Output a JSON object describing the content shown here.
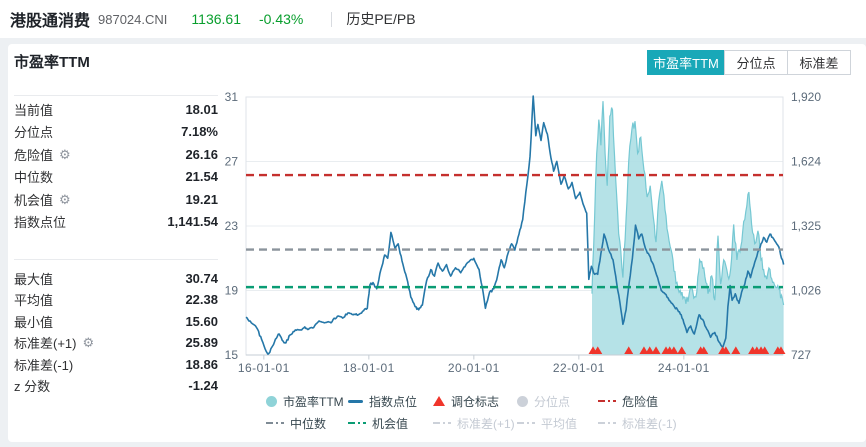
{
  "header": {
    "index_name": "港股通消费",
    "index_code": "987024.CNI",
    "price": "1136.61",
    "change": "-0.43%",
    "menu_label": "历史PE/PB",
    "change_color": "#089e2d"
  },
  "panel": {
    "title": "市盈率TTM",
    "stats_group1": [
      {
        "label": "当前值",
        "value": "18.01",
        "gear": false
      },
      {
        "label": "分位点",
        "value": "7.18%",
        "gear": false
      },
      {
        "label": "危险值",
        "value": "26.16",
        "gear": true
      },
      {
        "label": "中位数",
        "value": "21.54",
        "gear": false
      },
      {
        "label": "机会值",
        "value": "19.21",
        "gear": true
      },
      {
        "label": "指数点位",
        "value": "1,141.54",
        "gear": false
      }
    ],
    "stats_group2": [
      {
        "label": "最大值",
        "value": "30.74",
        "gear": false
      },
      {
        "label": "平均值",
        "value": "22.38",
        "gear": false
      },
      {
        "label": "最小值",
        "value": "15.60",
        "gear": false
      },
      {
        "label": "标准差(+1)",
        "value": "25.89",
        "gear": true
      },
      {
        "label": "标准差(-1)",
        "value": "18.86",
        "gear": false
      },
      {
        "label": "z 分数",
        "value": "-1.24",
        "gear": false
      }
    ]
  },
  "tabs": [
    {
      "label": "市盈率TTM",
      "active": true
    },
    {
      "label": "分位点",
      "active": false
    },
    {
      "label": "标准差",
      "active": false
    }
  ],
  "chart_data": {
    "type": "area+line+scatter",
    "title": "",
    "x_range_years": [
      2015.66,
      2025.92
    ],
    "x_ticks": [
      "16-01-01",
      "18-01-01",
      "20-01-01",
      "22-01-01",
      "24-01-01"
    ],
    "x_tick_years": [
      2016,
      2018,
      2020,
      2022,
      2024
    ],
    "left_axis": {
      "label": "市盈率TTM",
      "range": [
        15,
        31
      ],
      "ticks": [
        15,
        19,
        23,
        27,
        31
      ]
    },
    "right_axis": {
      "label": "指数点位",
      "range": [
        727,
        1920
      ],
      "ticks": [
        "727",
        "1,026",
        "1,325",
        "1,624",
        "1,920"
      ]
    },
    "reference_lines": [
      {
        "name": "危险值",
        "value": 26.16,
        "color": "#c5302e"
      },
      {
        "name": "中位数",
        "value": 21.54,
        "color": "#8b949c"
      },
      {
        "name": "机会值",
        "value": 19.21,
        "color": "#0a9c74"
      }
    ],
    "series": [
      {
        "name": "市盈率TTM",
        "type": "area",
        "axis": "left",
        "fill": "#abdee4",
        "stroke": "#76c8d3",
        "points": [
          [
            2022.25,
            18.8
          ],
          [
            2022.3,
            23.5
          ],
          [
            2022.34,
            27.5
          ],
          [
            2022.38,
            29.6
          ],
          [
            2022.42,
            28.0
          ],
          [
            2022.46,
            30.74
          ],
          [
            2022.5,
            27.5
          ],
          [
            2022.54,
            25.5
          ],
          [
            2022.59,
            29.8
          ],
          [
            2022.64,
            30.2
          ],
          [
            2022.7,
            26.0
          ],
          [
            2022.76,
            22.5
          ],
          [
            2022.84,
            19.8
          ],
          [
            2022.9,
            23.5
          ],
          [
            2022.95,
            27.0
          ],
          [
            2023.01,
            29.0
          ],
          [
            2023.07,
            29.5
          ],
          [
            2023.12,
            27.5
          ],
          [
            2023.18,
            28.5
          ],
          [
            2023.24,
            26.5
          ],
          [
            2023.3,
            24.8
          ],
          [
            2023.36,
            25.5
          ],
          [
            2023.42,
            23.5
          ],
          [
            2023.47,
            22.0
          ],
          [
            2023.52,
            24.5
          ],
          [
            2023.58,
            25.8
          ],
          [
            2023.64,
            24.0
          ],
          [
            2023.7,
            22.5
          ],
          [
            2023.76,
            21.5
          ],
          [
            2023.81,
            20.2
          ],
          [
            2023.87,
            19.5
          ],
          [
            2023.93,
            19.0
          ],
          [
            2024.0,
            18.6
          ],
          [
            2024.08,
            18.3
          ],
          [
            2024.15,
            19.2
          ],
          [
            2024.23,
            18.6
          ],
          [
            2024.3,
            20.9
          ],
          [
            2024.38,
            20.4
          ],
          [
            2024.46,
            18.8
          ],
          [
            2024.53,
            19.9
          ],
          [
            2024.59,
            18.4
          ],
          [
            2024.65,
            22.4
          ],
          [
            2024.7,
            19.4
          ],
          [
            2024.76,
            20.9
          ],
          [
            2024.84,
            19.9
          ],
          [
            2024.89,
            20.3
          ],
          [
            2024.95,
            23.1
          ],
          [
            2025.01,
            20.9
          ],
          [
            2025.07,
            21.4
          ],
          [
            2025.12,
            22.6
          ],
          [
            2025.18,
            23.9
          ],
          [
            2025.24,
            25.1
          ],
          [
            2025.29,
            23.1
          ],
          [
            2025.35,
            21.9
          ],
          [
            2025.41,
            22.7
          ],
          [
            2025.47,
            20.9
          ],
          [
            2025.52,
            20.3
          ],
          [
            2025.58,
            19.7
          ],
          [
            2025.64,
            20.3
          ],
          [
            2025.69,
            19.5
          ],
          [
            2025.75,
            19.2
          ],
          [
            2025.81,
            19.1
          ],
          [
            2025.86,
            18.7
          ],
          [
            2025.9,
            18.1
          ]
        ]
      },
      {
        "name": "指数点位",
        "type": "line",
        "axis": "right",
        "stroke": "#2577a8",
        "points": [
          [
            2015.66,
            902
          ],
          [
            2015.78,
            872
          ],
          [
            2015.88,
            846
          ],
          [
            2016.0,
            772
          ],
          [
            2016.08,
            731
          ],
          [
            2016.15,
            762
          ],
          [
            2016.22,
            800
          ],
          [
            2016.29,
            824
          ],
          [
            2016.35,
            795
          ],
          [
            2016.42,
            783
          ],
          [
            2016.5,
            820
          ],
          [
            2016.6,
            843
          ],
          [
            2016.7,
            843
          ],
          [
            2016.78,
            857
          ],
          [
            2016.85,
            846
          ],
          [
            2016.95,
            854
          ],
          [
            2017.05,
            884
          ],
          [
            2017.15,
            876
          ],
          [
            2017.28,
            876
          ],
          [
            2017.4,
            906
          ],
          [
            2017.5,
            898
          ],
          [
            2017.6,
            921
          ],
          [
            2017.7,
            913
          ],
          [
            2017.8,
            913
          ],
          [
            2017.9,
            932
          ],
          [
            2017.97,
            943
          ],
          [
            2018.02,
            1051
          ],
          [
            2018.08,
            1062
          ],
          [
            2018.15,
            1033
          ],
          [
            2018.23,
            1122
          ],
          [
            2018.3,
            1189
          ],
          [
            2018.36,
            1174
          ],
          [
            2018.42,
            1294
          ],
          [
            2018.5,
            1219
          ],
          [
            2018.56,
            1241
          ],
          [
            2018.65,
            1145
          ],
          [
            2018.72,
            1085
          ],
          [
            2018.8,
            995
          ],
          [
            2018.88,
            951
          ],
          [
            2018.95,
            936
          ],
          [
            2019.02,
            958
          ],
          [
            2019.1,
            1070
          ],
          [
            2019.18,
            1122
          ],
          [
            2019.25,
            1092
          ],
          [
            2019.32,
            1152
          ],
          [
            2019.4,
            1115
          ],
          [
            2019.48,
            1145
          ],
          [
            2019.56,
            1092
          ],
          [
            2019.65,
            1130
          ],
          [
            2019.75,
            1107
          ],
          [
            2019.85,
            1145
          ],
          [
            2019.94,
            1167
          ],
          [
            2020.0,
            1174
          ],
          [
            2020.1,
            1122
          ],
          [
            2020.16,
            1040
          ],
          [
            2020.22,
            943
          ],
          [
            2020.3,
            1018
          ],
          [
            2020.38,
            1033
          ],
          [
            2020.45,
            1092
          ],
          [
            2020.52,
            1167
          ],
          [
            2020.58,
            1130
          ],
          [
            2020.65,
            1197
          ],
          [
            2020.72,
            1241
          ],
          [
            2020.78,
            1212
          ],
          [
            2020.86,
            1286
          ],
          [
            2020.93,
            1353
          ],
          [
            2021.01,
            1517
          ],
          [
            2021.07,
            1644
          ],
          [
            2021.13,
            1924
          ],
          [
            2021.18,
            1741
          ],
          [
            2021.22,
            1793
          ],
          [
            2021.28,
            1719
          ],
          [
            2021.33,
            1801
          ],
          [
            2021.4,
            1748
          ],
          [
            2021.47,
            1637
          ],
          [
            2021.52,
            1577
          ],
          [
            2021.58,
            1622
          ],
          [
            2021.66,
            1517
          ],
          [
            2021.72,
            1555
          ],
          [
            2021.8,
            1495
          ],
          [
            2021.87,
            1525
          ],
          [
            2021.94,
            1450
          ],
          [
            2022.02,
            1480
          ],
          [
            2022.1,
            1413
          ],
          [
            2022.15,
            1383
          ],
          [
            2022.19,
            1077
          ],
          [
            2022.24,
            1137
          ],
          [
            2022.3,
            1100
          ],
          [
            2022.36,
            1100
          ],
          [
            2022.42,
            1197
          ],
          [
            2022.48,
            1286
          ],
          [
            2022.57,
            1212
          ],
          [
            2022.65,
            1167
          ],
          [
            2022.72,
            1062
          ],
          [
            2022.78,
            973
          ],
          [
            2022.84,
            869
          ],
          [
            2022.9,
            936
          ],
          [
            2022.96,
            1062
          ],
          [
            2023.02,
            1174
          ],
          [
            2023.08,
            1327
          ],
          [
            2023.14,
            1264
          ],
          [
            2023.2,
            1286
          ],
          [
            2023.27,
            1219
          ],
          [
            2023.34,
            1189
          ],
          [
            2023.42,
            1145
          ],
          [
            2023.5,
            1085
          ],
          [
            2023.57,
            1025
          ],
          [
            2023.64,
            1010
          ],
          [
            2023.72,
            980
          ],
          [
            2023.8,
            958
          ],
          [
            2023.88,
            936
          ],
          [
            2023.95,
            913
          ],
          [
            2024.0,
            876
          ],
          [
            2024.06,
            831
          ],
          [
            2024.13,
            861
          ],
          [
            2024.2,
            824
          ],
          [
            2024.29,
            913
          ],
          [
            2024.36,
            891
          ],
          [
            2024.44,
            846
          ],
          [
            2024.51,
            809
          ],
          [
            2024.59,
            831
          ],
          [
            2024.67,
            787
          ],
          [
            2024.74,
            761
          ],
          [
            2024.8,
            805
          ],
          [
            2024.84,
            951
          ],
          [
            2024.88,
            1048
          ],
          [
            2024.92,
            980
          ],
          [
            2024.98,
            1010
          ],
          [
            2025.05,
            966
          ],
          [
            2025.1,
            1018
          ],
          [
            2025.16,
            1055
          ],
          [
            2025.22,
            1115
          ],
          [
            2025.27,
            1085
          ],
          [
            2025.33,
            1137
          ],
          [
            2025.41,
            1204
          ],
          [
            2025.47,
            1241
          ],
          [
            2025.52,
            1271
          ],
          [
            2025.58,
            1249
          ],
          [
            2025.64,
            1286
          ],
          [
            2025.69,
            1271
          ],
          [
            2025.75,
            1249
          ],
          [
            2025.81,
            1226
          ],
          [
            2025.86,
            1174
          ],
          [
            2025.9,
            1145
          ]
        ]
      },
      {
        "name": "调仓标志",
        "type": "triangle-marker",
        "color": "#f0352b",
        "x_years": [
          2022.27,
          2022.36,
          2022.95,
          2023.24,
          2023.35,
          2023.47,
          2023.66,
          2023.73,
          2023.81,
          2023.96,
          2024.32,
          2024.38,
          2024.74,
          2024.8,
          2024.99,
          2025.31,
          2025.39,
          2025.47,
          2025.54,
          2025.79,
          2025.85
        ]
      }
    ],
    "grid": true,
    "legend_position": "bottom"
  },
  "legend": {
    "rows": [
      [
        {
          "label": "市盈率TTM",
          "marker": "circle",
          "color": "#8fd3d8",
          "enabled": true
        },
        {
          "label": "指数点位",
          "marker": "line",
          "color": "#2577a8",
          "enabled": true
        },
        {
          "label": "调仓标志",
          "marker": "triangle",
          "color": "#f0352b",
          "enabled": true
        },
        {
          "label": "分位点",
          "marker": "circle",
          "color": "#ccd1d9",
          "enabled": false
        },
        {
          "label": "危险值",
          "marker": "dash",
          "color": "#c5302e",
          "enabled": true
        }
      ],
      [
        {
          "label": "中位数",
          "marker": "dash",
          "color": "#7f8b95",
          "enabled": true
        },
        {
          "label": "机会值",
          "marker": "dash",
          "color": "#0a9c74",
          "enabled": true
        },
        {
          "label": "标准差(+1)",
          "marker": "dash",
          "color": "#ccd1d9",
          "enabled": false
        },
        {
          "label": "平均值",
          "marker": "dash",
          "color": "#ccd1d9",
          "enabled": false
        },
        {
          "label": "标准差(-1)",
          "marker": "dash",
          "color": "#ccd1d9",
          "enabled": false
        }
      ]
    ]
  }
}
